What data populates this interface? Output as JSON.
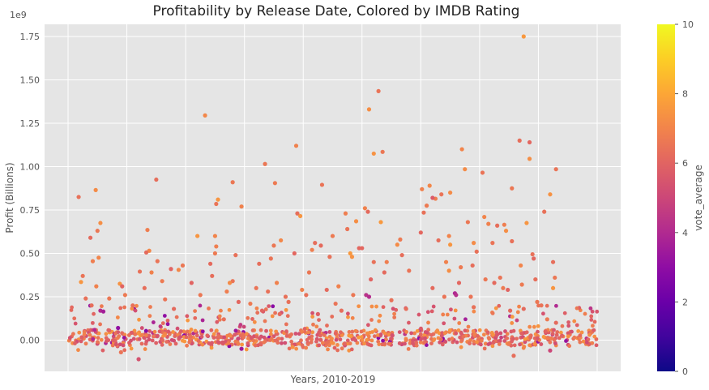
{
  "chart_data": {
    "type": "scatter",
    "title": "Profitability by Release Date, Colored by IMDB Rating",
    "xlabel": "Years, 2010-2019",
    "ylabel": "Profit (Billions)",
    "y_offset_label": "1e9",
    "ylim": [
      -0.18,
      1.82
    ],
    "yticks": [
      0.0,
      0.25,
      0.5,
      0.75,
      1.0,
      1.25,
      1.5,
      1.75
    ],
    "ytick_labels": [
      "0.00",
      "0.25",
      "0.50",
      "0.75",
      "1.00",
      "1.25",
      "1.50",
      "1.75"
    ],
    "xlim": [
      2009.6,
      2019.4
    ],
    "xgrid": [
      2010,
      2011,
      2012,
      2013,
      2014,
      2015,
      2016,
      2017,
      2018,
      2019
    ],
    "grid": true,
    "colorbar": {
      "label": "vote_average",
      "range": [
        0,
        10
      ],
      "ticks": [
        "0",
        "2",
        "4",
        "6",
        "8",
        "10"
      ],
      "colormap": "plasma"
    },
    "points": [
      [
        2010.18,
        0.825,
        6.4
      ],
      [
        2010.47,
        0.865,
        7.2
      ],
      [
        2010.55,
        0.675,
        7.3
      ],
      [
        2010.5,
        0.63,
        6.6
      ],
      [
        2010.38,
        0.59,
        6.2
      ],
      [
        2010.52,
        0.475,
        7.0
      ],
      [
        2010.42,
        0.455,
        6.8
      ],
      [
        2010.25,
        0.37,
        6.5
      ],
      [
        2010.22,
        0.335,
        7.5
      ],
      [
        2010.48,
        0.31,
        6.9
      ],
      [
        2010.88,
        0.325,
        7.4
      ],
      [
        2010.92,
        0.31,
        6.0
      ],
      [
        2010.55,
        0.17,
        4.0
      ],
      [
        2010.6,
        0.165,
        3.6
      ],
      [
        2010.4,
        0.2,
        6.3
      ],
      [
        2010.97,
        0.26,
        6.7
      ],
      [
        2010.85,
        0.07,
        3.1
      ],
      [
        2010.9,
        -0.07,
        6.5
      ],
      [
        2010.3,
        0.24,
        6.4
      ],
      [
        2010.7,
        0.24,
        6.6
      ],
      [
        2011.5,
        0.925,
        6.3
      ],
      [
        2011.35,
        0.635,
        6.8
      ],
      [
        2011.38,
        0.515,
        7.1
      ],
      [
        2011.33,
        0.505,
        6.2
      ],
      [
        2011.52,
        0.455,
        6.5
      ],
      [
        2011.42,
        0.39,
        6.9
      ],
      [
        2011.95,
        0.43,
        6.6
      ],
      [
        2011.75,
        0.41,
        6.0
      ],
      [
        2011.88,
        0.405,
        7.1
      ],
      [
        2011.22,
        0.395,
        6.4
      ],
      [
        2011.3,
        0.3,
        6.3
      ],
      [
        2011.6,
        0.34,
        6.7
      ],
      [
        2011.8,
        0.18,
        6.2
      ],
      [
        2011.2,
        -0.11,
        5.4
      ],
      [
        2011.65,
        0.235,
        6.5
      ],
      [
        2011.1,
        0.2,
        6.4
      ],
      [
        2012.33,
        1.295,
        7.1
      ],
      [
        2012.55,
        0.81,
        7.5
      ],
      [
        2012.52,
        0.785,
        6.5
      ],
      [
        2012.5,
        0.6,
        7.0
      ],
      [
        2012.2,
        0.6,
        7.5
      ],
      [
        2012.52,
        0.54,
        6.8
      ],
      [
        2012.5,
        0.5,
        6.7
      ],
      [
        2012.42,
        0.44,
        6.2
      ],
      [
        2012.8,
        0.91,
        6.6
      ],
      [
        2012.95,
        0.77,
        6.9
      ],
      [
        2012.85,
        0.49,
        6.4
      ],
      [
        2012.8,
        0.34,
        6.5
      ],
      [
        2012.75,
        0.33,
        7.2
      ],
      [
        2012.45,
        0.37,
        6.3
      ],
      [
        2012.1,
        0.33,
        6.0
      ],
      [
        2012.65,
        0.12,
        6.4
      ],
      [
        2012.95,
        -0.05,
        3.4
      ],
      [
        2012.25,
        0.26,
        6.6
      ],
      [
        2012.9,
        0.22,
        6.1
      ],
      [
        2012.7,
        0.28,
        6.8
      ],
      [
        2013.35,
        1.015,
        6.6
      ],
      [
        2013.52,
        0.905,
        6.7
      ],
      [
        2013.62,
        0.575,
        7.1
      ],
      [
        2013.5,
        0.545,
        6.6
      ],
      [
        2013.45,
        0.47,
        6.5
      ],
      [
        2013.25,
        0.44,
        6.3
      ],
      [
        2013.55,
        0.33,
        6.9
      ],
      [
        2013.4,
        0.28,
        6.4
      ],
      [
        2013.88,
        1.12,
        6.9
      ],
      [
        2013.9,
        0.73,
        6.3
      ],
      [
        2013.95,
        0.715,
        7.5
      ],
      [
        2013.85,
        0.5,
        6.1
      ],
      [
        2013.98,
        0.29,
        6.9
      ],
      [
        2013.75,
        0.22,
        6.4
      ],
      [
        2013.82,
        -0.04,
        7.4
      ],
      [
        2013.3,
        0.17,
        6.0
      ],
      [
        2013.1,
        0.21,
        6.7
      ],
      [
        2013.6,
        0.15,
        6.2
      ],
      [
        2013.2,
        0.3,
        6.5
      ],
      [
        2013.7,
        0.25,
        6.4
      ],
      [
        2014.32,
        0.895,
        6.5
      ],
      [
        2014.5,
        0.6,
        6.7
      ],
      [
        2014.2,
        0.56,
        6.3
      ],
      [
        2014.3,
        0.545,
        6.2
      ],
      [
        2014.15,
        0.52,
        6.8
      ],
      [
        2014.45,
        0.48,
        6.4
      ],
      [
        2014.1,
        0.39,
        6.6
      ],
      [
        2014.6,
        0.31,
        6.9
      ],
      [
        2014.72,
        0.73,
        6.8
      ],
      [
        2014.75,
        0.64,
        6.5
      ],
      [
        2014.9,
        0.685,
        7.3
      ],
      [
        2014.8,
        0.5,
        7.6
      ],
      [
        2014.83,
        0.48,
        7.4
      ],
      [
        2014.95,
        0.53,
        6.1
      ],
      [
        2014.4,
        0.29,
        6.2
      ],
      [
        2014.55,
        0.21,
        6.5
      ],
      [
        2014.25,
        0.15,
        5.8
      ],
      [
        2014.65,
        0.17,
        6.3
      ],
      [
        2014.85,
        0.26,
        6.6
      ],
      [
        2014.05,
        0.26,
        6.4
      ],
      [
        2015.12,
        1.33,
        7.3
      ],
      [
        2015.2,
        1.075,
        7.4
      ],
      [
        2015.35,
        1.085,
        6.6
      ],
      [
        2015.28,
        1.435,
        6.5
      ],
      [
        2015.32,
        0.68,
        7.6
      ],
      [
        2015.05,
        0.76,
        6.9
      ],
      [
        2015.1,
        0.74,
        6.2
      ],
      [
        2015.0,
        0.53,
        6.1
      ],
      [
        2015.2,
        0.45,
        6.4
      ],
      [
        2015.42,
        0.45,
        6.8
      ],
      [
        2015.38,
        0.39,
        6.2
      ],
      [
        2015.6,
        0.55,
        7.2
      ],
      [
        2015.65,
        0.58,
        6.7
      ],
      [
        2015.68,
        0.49,
        6.3
      ],
      [
        2015.8,
        0.4,
        6.5
      ],
      [
        2015.15,
        0.35,
        6.0
      ],
      [
        2015.07,
        0.26,
        4.3
      ],
      [
        2015.12,
        0.25,
        4.1
      ],
      [
        2015.5,
        0.23,
        6.4
      ],
      [
        2015.75,
        0.18,
        6.3
      ],
      [
        2016.02,
        0.87,
        6.9
      ],
      [
        2016.15,
        0.89,
        7.1
      ],
      [
        2016.25,
        0.815,
        6.8
      ],
      [
        2016.2,
        0.82,
        5.7
      ],
      [
        2016.1,
        0.775,
        6.7
      ],
      [
        2016.05,
        0.735,
        6.4
      ],
      [
        2016.0,
        0.62,
        6.1
      ],
      [
        2016.3,
        0.575,
        6.3
      ],
      [
        2016.35,
        0.84,
        6.5
      ],
      [
        2016.5,
        0.85,
        7.2
      ],
      [
        2016.48,
        0.6,
        7.0
      ],
      [
        2016.5,
        0.55,
        7.5
      ],
      [
        2016.43,
        0.45,
        6.9
      ],
      [
        2016.48,
        0.4,
        7.3
      ],
      [
        2016.2,
        0.3,
        6.2
      ],
      [
        2016.4,
        0.25,
        6.5
      ],
      [
        2016.7,
        1.1,
        7.0
      ],
      [
        2016.75,
        0.985,
        7.2
      ],
      [
        2016.8,
        0.68,
        6.6
      ],
      [
        2016.9,
        0.56,
        7.2
      ],
      [
        2016.95,
        0.51,
        6.4
      ],
      [
        2016.88,
        0.43,
        6.3
      ],
      [
        2016.68,
        0.42,
        6.7
      ],
      [
        2016.58,
        0.27,
        3.9
      ],
      [
        2016.6,
        0.26,
        4.2
      ],
      [
        2016.65,
        0.33,
        6.1
      ],
      [
        2016.85,
        0.25,
        6.5
      ],
      [
        2016.9,
        0.19,
        6.4
      ],
      [
        2017.05,
        0.965,
        6.5
      ],
      [
        2017.08,
        0.71,
        7.0
      ],
      [
        2017.15,
        0.67,
        6.9
      ],
      [
        2017.22,
        0.56,
        6.5
      ],
      [
        2017.3,
        0.66,
        6.3
      ],
      [
        2017.42,
        0.665,
        6.8
      ],
      [
        2017.45,
        0.63,
        7.3
      ],
      [
        2017.55,
        0.875,
        6.6
      ],
      [
        2017.55,
        0.57,
        6.4
      ],
      [
        2017.1,
        0.35,
        6.6
      ],
      [
        2017.25,
        0.33,
        6.2
      ],
      [
        2017.35,
        0.36,
        6.5
      ],
      [
        2017.4,
        0.3,
        6.7
      ],
      [
        2017.48,
        0.29,
        6.0
      ],
      [
        2017.52,
        0.17,
        6.2
      ],
      [
        2017.58,
        -0.09,
        6.3
      ],
      [
        2017.75,
        1.75,
        7.6
      ],
      [
        2017.68,
        1.15,
        6.3
      ],
      [
        2017.85,
        1.14,
        6.1
      ],
      [
        2017.85,
        1.045,
        7.3
      ],
      [
        2017.8,
        0.675,
        7.5
      ],
      [
        2017.9,
        0.495,
        6.4
      ],
      [
        2017.92,
        0.47,
        6.1
      ],
      [
        2017.7,
        0.43,
        7.0
      ],
      [
        2017.72,
        0.32,
        6.7
      ],
      [
        2017.95,
        0.35,
        6.3
      ],
      [
        2017.98,
        0.22,
        6.6
      ],
      [
        2017.75,
        0.18,
        6.2
      ],
      [
        2018.1,
        0.74,
        6.4
      ],
      [
        2018.2,
        0.84,
        7.4
      ],
      [
        2018.3,
        0.985,
        6.5
      ],
      [
        2018.25,
        0.45,
        6.3
      ],
      [
        2018.28,
        0.36,
        6.6
      ],
      [
        2018.25,
        0.3,
        7.5
      ],
      [
        2018.05,
        0.2,
        6.5
      ],
      [
        2018.15,
        0.12,
        6.7
      ],
      [
        2018.2,
        -0.06,
        5.0
      ],
      [
        2018.3,
        0.1,
        6.2
      ],
      [
        2018.12,
        0.05,
        6.0
      ],
      [
        2018.22,
        0.01,
        6.8
      ]
    ]
  }
}
